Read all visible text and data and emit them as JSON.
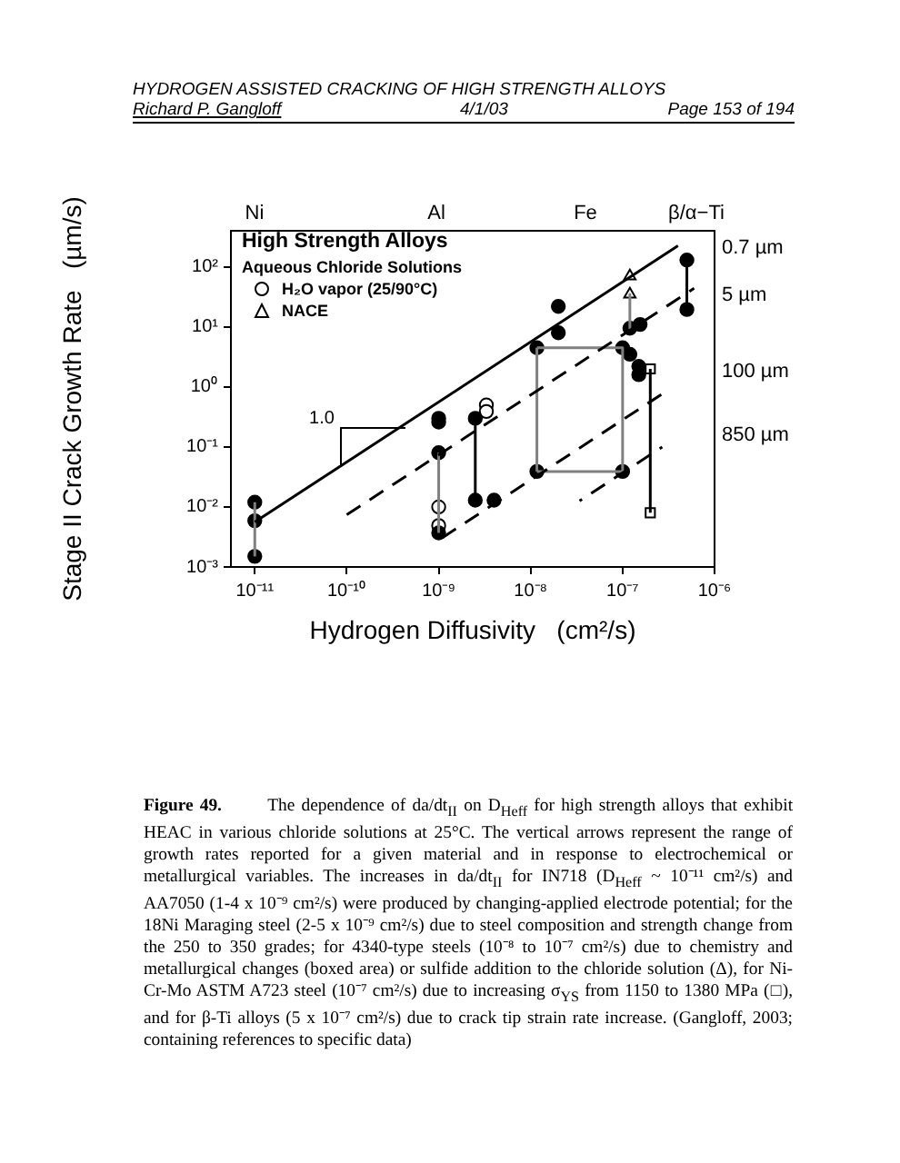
{
  "chart_data": {
    "type": "scatter",
    "xlabel": "Hydrogen Diffusivity   (cm²/s)",
    "ylabel": "Stage II Crack Growth Rate   (µm/s)",
    "log": "xy",
    "legend": "top left",
    "legend_title": "High Strength Alloys",
    "xlim": [
      5.5e-12,
      1e-06
    ],
    "ylim": [
      0.001,
      400
    ],
    "xticks": [
      {
        "value": 1e-11,
        "label": "10⁻¹¹"
      },
      {
        "value": 1e-10,
        "label": "10⁻¹⁰"
      },
      {
        "value": 1e-09,
        "label": "10⁻⁹"
      },
      {
        "value": 1e-08,
        "label": "10⁻⁸"
      },
      {
        "value": 1e-07,
        "label": "10⁻⁷"
      },
      {
        "value": 1e-06,
        "label": "10⁻⁶"
      }
    ],
    "yticks": [
      {
        "value": 0.001,
        "label": "10⁻³"
      },
      {
        "value": 0.01,
        "label": "10⁻²"
      },
      {
        "value": 0.1,
        "label": "10⁻¹"
      },
      {
        "value": 1,
        "label": "10⁰"
      },
      {
        "value": 10,
        "label": "10¹"
      },
      {
        "value": 100,
        "label": "10²"
      }
    ],
    "series": [
      {
        "marker": "circle",
        "color": "#000000",
        "x": [
          1e-11,
          1e-11,
          1e-11,
          1e-09,
          1e-09,
          1e-09,
          1e-09,
          2.5e-09,
          2.5e-09,
          4e-09,
          2e-08,
          2e-08,
          1.17e-08,
          1e-07,
          1.17e-08,
          1e-07,
          1.2e-07,
          1.55e-07,
          1.2e-07,
          1.5e-07,
          1.5e-07,
          5e-07,
          5e-07
        ],
        "values": [
          0.012,
          0.0059,
          0.0015,
          0.3,
          0.26,
          0.08,
          0.0037,
          0.3,
          0.013,
          0.013,
          22,
          8,
          4.5,
          4.5,
          0.039,
          0.039,
          9.5,
          11,
          3.5,
          2.2,
          1.6,
          19.5,
          130
        ]
      },
      {
        "marker": "circle",
        "name": "H₂O vapor (25/90°C)",
        "color": "#000000",
        "x": [
          1e-09,
          1e-09,
          3.3e-09,
          3.3e-09
        ],
        "values": [
          0.01,
          0.0049,
          0.5,
          0.39
        ]
      },
      {
        "marker": "triangle",
        "name": "NACE",
        "color": "#000000",
        "x": [
          1.2e-07,
          1.2e-07
        ],
        "values": [
          70,
          35
        ]
      },
      {
        "marker": "square",
        "color": "#000000",
        "x": [
          2e-07,
          2e-07
        ],
        "values": [
          2.0,
          0.008
        ]
      },
      {
        "type": "line",
        "marker": "none",
        "line_style": "solid",
        "color": "#000000",
        "x": [
          1e-11,
          4e-07
        ],
        "values": [
          0.0056,
          225
        ]
      },
      {
        "type": "line",
        "marker": "none",
        "line_style": "dashed",
        "color": "#000000",
        "x": [
          1e-10,
          6e-07
        ],
        "values": [
          0.0074,
          44
        ]
      },
      {
        "type": "line",
        "marker": "none",
        "line_style": "dashed",
        "color": "#000000",
        "x": [
          1e-09,
          3e-07
        ],
        "values": [
          0.0028,
          0.85
        ]
      },
      {
        "type": "line",
        "marker": "none",
        "line_style": "dashed",
        "color": "#000000",
        "x": [
          3.4e-08,
          2.7e-07
        ],
        "values": [
          0.0126,
          0.1
        ]
      },
      {
        "type": "line",
        "marker": "none",
        "line_style": "solid",
        "color": "#808080",
        "x": [
          1e-11,
          1e-11
        ],
        "values": [
          0.0015,
          0.012
        ]
      },
      {
        "type": "line",
        "marker": "none",
        "line_style": "solid",
        "color": "#808080",
        "x": [
          1e-09,
          1e-09
        ],
        "values": [
          0.0037,
          0.08
        ]
      },
      {
        "type": "line",
        "marker": "none",
        "line_style": "solid",
        "color": "#000000",
        "x": [
          2.5e-09,
          2.5e-09
        ],
        "values": [
          0.013,
          0.3
        ]
      },
      {
        "type": "line",
        "marker": "none",
        "line_style": "solid",
        "color": "#808080",
        "x": [
          1.17e-08,
          1e-07
        ],
        "values": [
          4.5,
          4.5
        ]
      },
      {
        "type": "line",
        "marker": "none",
        "line_style": "solid",
        "color": "#808080",
        "x": [
          1e-07,
          1e-07
        ],
        "values": [
          4.5,
          0.039
        ]
      },
      {
        "type": "line",
        "marker": "none",
        "line_style": "solid",
        "color": "#808080",
        "x": [
          1e-07,
          1.17e-08
        ],
        "values": [
          0.039,
          0.039
        ]
      },
      {
        "type": "line",
        "marker": "none",
        "line_style": "solid",
        "color": "#808080",
        "x": [
          1.17e-08,
          1.17e-08
        ],
        "values": [
          0.039,
          4.5
        ]
      },
      {
        "type": "line",
        "marker": "none",
        "line_style": "solid",
        "color": "#808080",
        "x": [
          1.2e-07,
          1.2e-07
        ],
        "values": [
          35,
          9.5
        ]
      },
      {
        "type": "line",
        "marker": "none",
        "line_style": "solid",
        "color": "#000000",
        "x": [
          2e-07,
          2e-07
        ],
        "values": [
          0.008,
          2.0
        ]
      },
      {
        "type": "line",
        "marker": "none",
        "line_style": "solid",
        "color": "#000000",
        "x": [
          5e-07,
          5e-07
        ],
        "values": [
          19.5,
          130
        ]
      }
    ],
    "annotations": [
      "HYDROGEN ASSISTED CRACKING OF HIGH STRENGTH ALLOYS",
      "Richard P. Gangloff",
      "4/1/03",
      "Page 153 of 194",
      "Aqueous Chloride Solutions",
      "Figure 49.",
      "The dependence of da/dt$_{II}$ on D$_{Heff}$ for high strength alloys that exhibit HEAC in various chloride solutions at 25°C.  The vertical arrows represent the range of growth rates reported for a given material and in response to electrochemical or metallurgical variables.  The increases in da/dt$_{II}$ for IN718 (D$_{Heff}$ ~ 10⁻¹¹ cm²/s) and AA7050 (1-4 x 10⁻⁹ cm²/s) were produced by changing-applied electrode potential; for the 18Ni Maraging steel (2-5 x 10⁻⁹ cm²/s) due to steel composition and strength change from the 250 to 350 grades; for 4340-type steels (10⁻⁸ to 10⁻⁷ cm²/s) due to chemistry and metallurgical changes (boxed area) or sulfide addition to the chloride solution (Δ), for Ni-Cr-Mo ASTM A723 steel (10⁻⁷ cm²/s) due to increasing σ$_{YS}$ from 1150 to 1380 MPa (□), and for β-Ti alloys (5 x 10⁻⁷ cm²/s) due to crack tip strain rate increase. (Gangloff, 2003; containing references to specific data)",
      "1.0",
      "0.7 µm",
      "5 µm",
      "100 µm",
      "850 µm",
      "Ni",
      "Al",
      "Fe",
      "β/α−Ti"
    ]
  }
}
